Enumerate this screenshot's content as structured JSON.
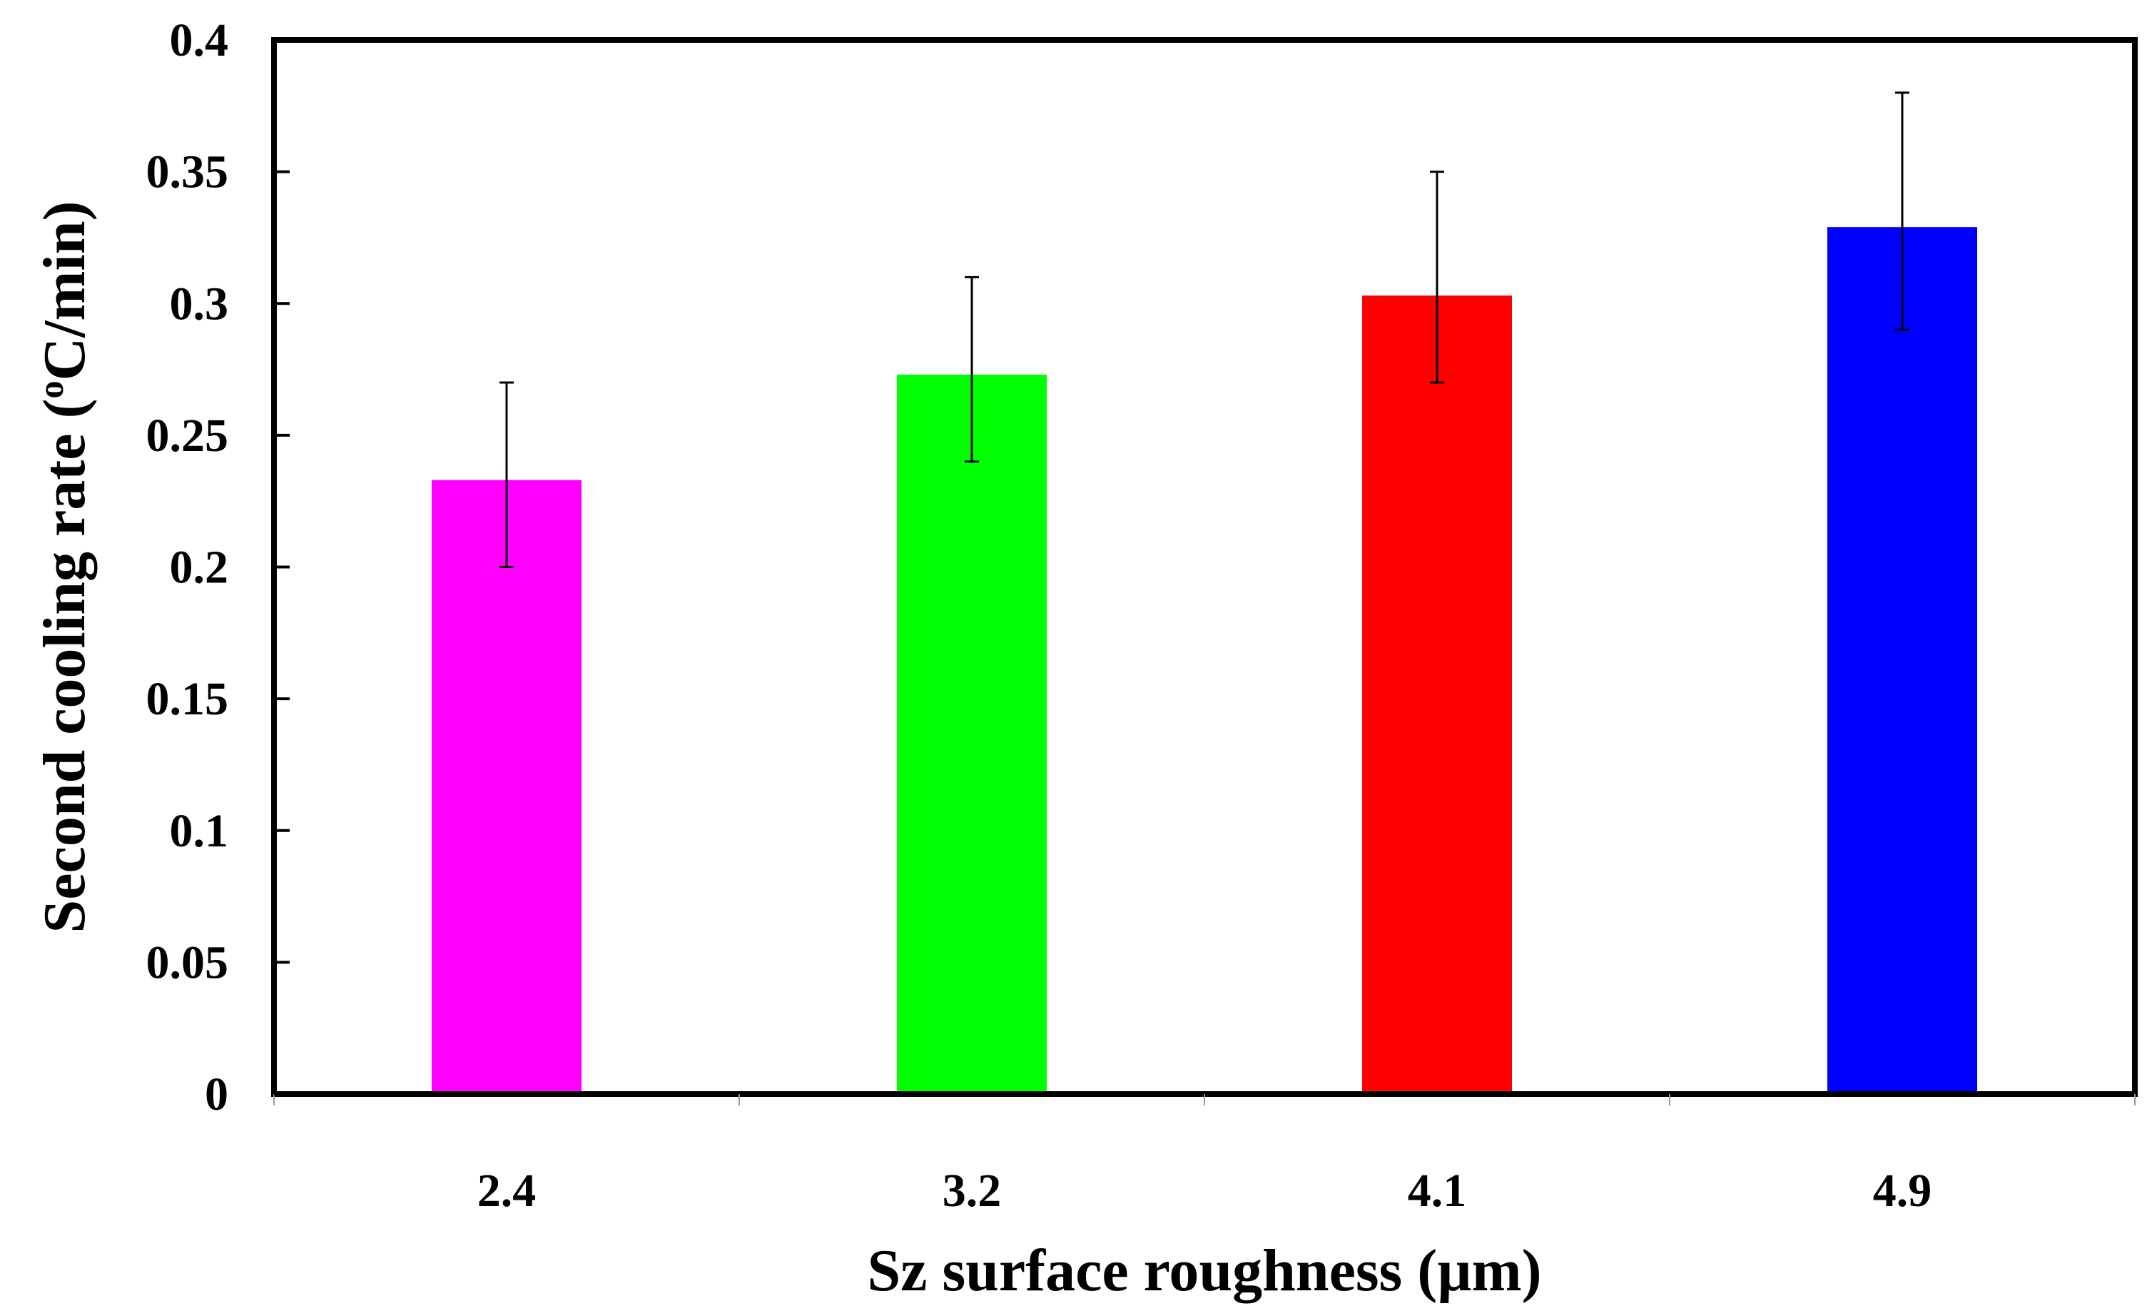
{
  "chart_data": {
    "type": "bar",
    "title": "",
    "xlabel": "Sz surface roughness (µm)",
    "ylabel_main": "Second cooling rate (",
    "ylabel_degree": "o",
    "ylabel_unit": "C/min)",
    "categories": [
      "2.4",
      "3.2",
      "4.1",
      "4.9"
    ],
    "values": [
      0.233,
      0.273,
      0.303,
      0.329
    ],
    "errors_upper": [
      0.27,
      0.31,
      0.35,
      0.38
    ],
    "errors_lower": [
      0.2,
      0.24,
      0.27,
      0.29
    ],
    "colors": [
      "#ff00ff",
      "#00ff00",
      "#ff0000",
      "#0000ff"
    ],
    "ylim": [
      0,
      0.4
    ],
    "yticks": [
      "0",
      "0.05",
      "0.1",
      "0.15",
      "0.2",
      "0.25",
      "0.3",
      "0.35",
      "0.4"
    ],
    "grid": false,
    "legend": "none"
  }
}
